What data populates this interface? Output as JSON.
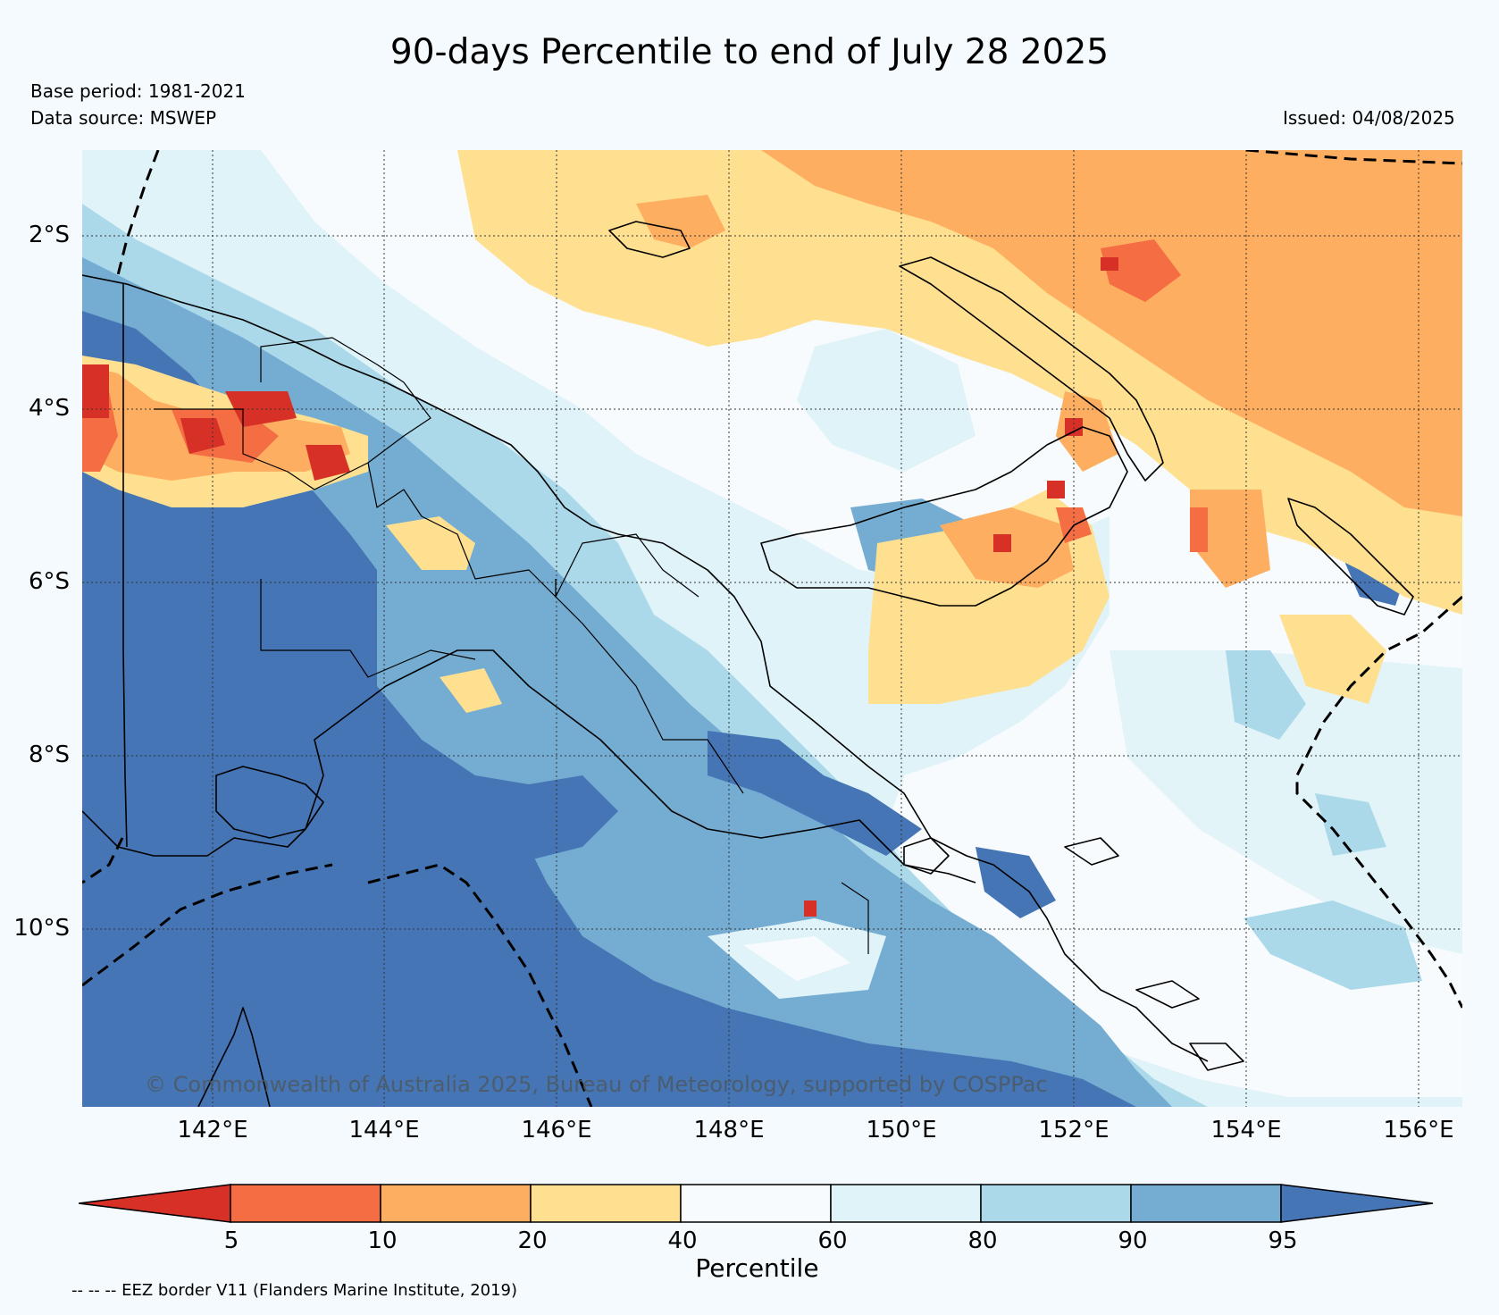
{
  "title": "90-days Percentile to end of July 28 2025",
  "base_period": "Base period: 1981-2021",
  "data_source": "Data source: MSWEP",
  "issued": "Issued: 04/08/2025",
  "credit": "© Commonwealth of Australia 2025, Bureau of Meteorology, supported by COSPPac",
  "lat_labels": [
    "2°S",
    "4°S",
    "6°S",
    "8°S",
    "10°S"
  ],
  "lon_labels": [
    "142°E",
    "144°E",
    "146°E",
    "148°E",
    "150°E",
    "152°E",
    "154°E",
    "156°E"
  ],
  "colorbar": {
    "title": "Percentile",
    "ticks": [
      "5",
      "10",
      "20",
      "40",
      "60",
      "80",
      "90",
      "95"
    ],
    "colors": [
      "#d73027",
      "#f46d43",
      "#fdae61",
      "#fee090",
      "#f7fbfd",
      "#e0f3f8",
      "#abd9e9",
      "#74add1",
      "#4575b4"
    ]
  },
  "footnote": "-- -- -- EEZ border V11 (Flanders Marine Institute, 2019)"
}
